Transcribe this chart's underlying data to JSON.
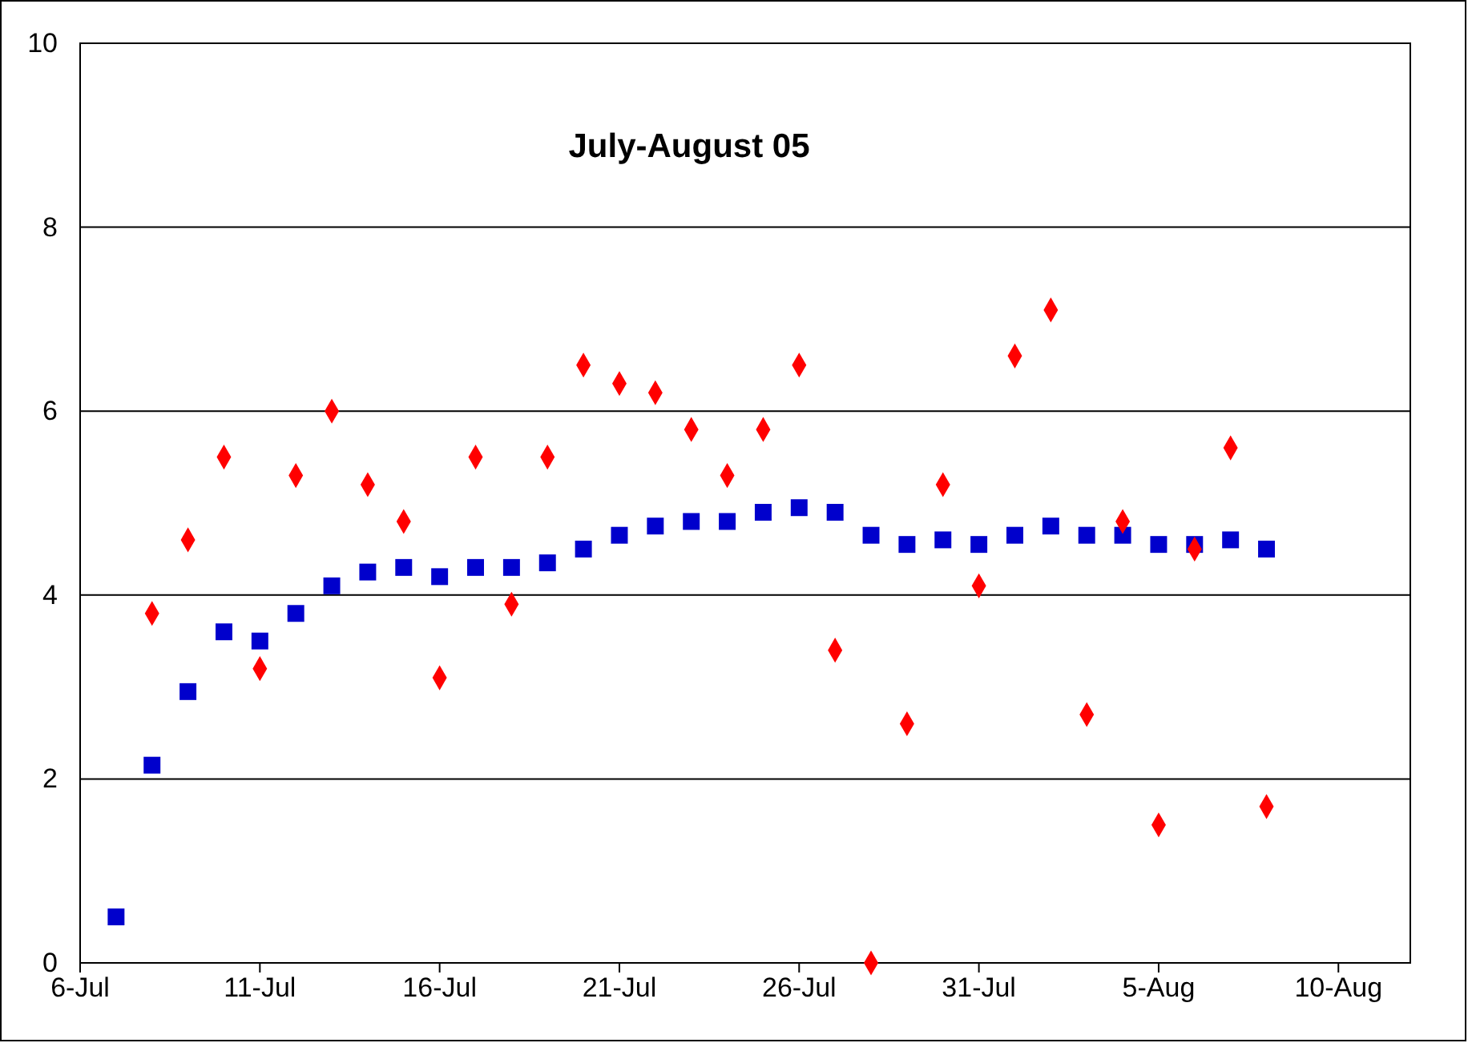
{
  "chart_data": {
    "type": "scatter",
    "title": "July-August 05",
    "x": [
      "--07-07",
      "--07-08",
      "--07-09",
      "--07-10",
      "--07-11",
      "--07-12",
      "--07-13",
      "--07-14",
      "--07-15",
      "--07-16",
      "--07-17",
      "--07-18",
      "--07-19",
      "--07-20",
      "--07-21",
      "--07-22",
      "--07-23",
      "--07-24",
      "--07-25",
      "--07-26",
      "--07-27",
      "--07-28",
      "--07-29",
      "--07-30",
      "--07-31",
      "--08-01",
      "--08-02",
      "--08-03",
      "--08-04",
      "--08-05",
      "--08-06",
      "--08-07",
      "--08-08"
    ],
    "series": [
      {
        "color": "#ff0000",
        "marker": "diamond",
        "values": [
          null,
          3.8,
          4.6,
          5.5,
          3.2,
          5.3,
          6.0,
          5.2,
          4.8,
          3.1,
          5.5,
          3.9,
          5.5,
          6.5,
          6.3,
          6.2,
          5.8,
          5.3,
          5.8,
          6.5,
          3.4,
          0.0,
          2.6,
          5.2,
          4.1,
          6.6,
          7.1,
          2.7,
          4.8,
          1.5,
          4.5,
          5.6,
          1.7
        ]
      },
      {
        "color": "#0000cc",
        "marker": "square",
        "values": [
          0.5,
          2.15,
          2.95,
          3.6,
          3.5,
          3.8,
          4.1,
          4.25,
          4.3,
          4.2,
          4.3,
          4.3,
          4.35,
          4.5,
          4.65,
          4.75,
          4.8,
          4.8,
          4.9,
          4.95,
          4.9,
          4.65,
          4.55,
          4.6,
          4.55,
          4.65,
          4.75,
          4.65,
          4.65,
          4.55,
          4.55,
          4.6,
          4.5
        ]
      }
    ],
    "xlim": [
      "--07-06",
      "--08-12"
    ],
    "xticks": [
      {
        "value": "--07-06",
        "label": "6-Jul"
      },
      {
        "value": "--07-11",
        "label": "11-Jul"
      },
      {
        "value": "--07-16",
        "label": "16-Jul"
      },
      {
        "value": "--07-21",
        "label": "21-Jul"
      },
      {
        "value": "--07-26",
        "label": "26-Jul"
      },
      {
        "value": "--07-31",
        "label": "31-Jul"
      },
      {
        "value": "--08-05",
        "label": "5-Aug"
      },
      {
        "value": "--08-10",
        "label": "10-Aug"
      }
    ],
    "ylim": [
      0,
      10
    ],
    "yticks": [
      0,
      2,
      4,
      6,
      8,
      10
    ],
    "grid": "y"
  }
}
